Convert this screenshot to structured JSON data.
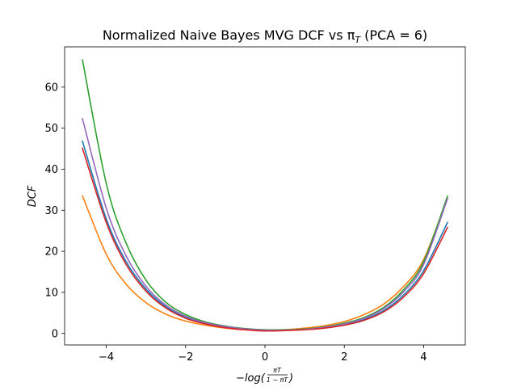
{
  "chart_data": {
    "type": "line",
    "title": "Normalized Naive Bayes MVG DCF vs π",
    "title_sub": "T",
    "title_tail": " (PCA = 6)",
    "xlabel_prefix": "−",
    "xlabel_main": "log(",
    "xlabel_frac_num": "πT",
    "xlabel_frac_den": "1 − πT",
    "xlabel_suffix": ")",
    "ylabel": "DCF",
    "xlim": [
      -5.05,
      5.05
    ],
    "ylim": [
      -2.8,
      69.8
    ],
    "xticks": [
      -4,
      -2,
      0,
      2,
      4
    ],
    "xtick_labels": [
      "−4",
      "−2",
      "0",
      "2",
      "4"
    ],
    "yticks": [
      0,
      10,
      20,
      30,
      40,
      50,
      60
    ],
    "ytick_labels": [
      "0",
      "10",
      "20",
      "30",
      "40",
      "50",
      "60"
    ],
    "grid": false,
    "series": [
      {
        "color": "#1f77b4",
        "x": [
          -4.6,
          -4.0,
          -3.5,
          -3.0,
          -2.5,
          -2.0,
          -1.5,
          -1.0,
          -0.5,
          0.0,
          0.5,
          1.0,
          1.5,
          2.0,
          2.5,
          3.0,
          3.5,
          4.0,
          4.6
        ],
        "values": [
          46.8,
          27.9,
          17.5,
          10.8,
          6.5,
          3.9,
          2.4,
          1.5,
          1.0,
          0.7,
          0.8,
          1.0,
          1.4,
          2.1,
          3.4,
          5.6,
          9.4,
          15.3,
          27.0
        ]
      },
      {
        "color": "#ff7f0e",
        "x": [
          -4.6,
          -4.0,
          -3.5,
          -3.0,
          -2.5,
          -2.0,
          -1.5,
          -1.0,
          -0.5,
          0.0,
          0.5,
          1.0,
          1.5,
          2.0,
          2.5,
          3.0,
          3.5,
          4.0,
          4.6
        ],
        "values": [
          33.5,
          19.3,
          12.0,
          7.5,
          4.7,
          3.0,
          2.0,
          1.3,
          0.9,
          0.7,
          0.9,
          1.3,
          1.9,
          2.9,
          4.6,
          7.2,
          11.5,
          18.0,
          33.0
        ]
      },
      {
        "color": "#2ca02c",
        "x": [
          -4.6,
          -4.0,
          -3.5,
          -3.0,
          -2.5,
          -2.0,
          -1.5,
          -1.0,
          -0.5,
          0.0,
          0.5,
          1.0,
          1.5,
          2.0,
          2.5,
          3.0,
          3.5,
          4.0,
          4.6
        ],
        "values": [
          66.6,
          36.5,
          22.0,
          13.0,
          7.6,
          4.6,
          2.8,
          1.8,
          1.2,
          0.9,
          0.9,
          1.1,
          1.6,
          2.5,
          3.9,
          6.4,
          10.7,
          17.5,
          33.4
        ]
      },
      {
        "color": "#9467bd",
        "x": [
          -4.6,
          -4.0,
          -3.5,
          -3.0,
          -2.5,
          -2.0,
          -1.5,
          -1.0,
          -0.5,
          0.0,
          0.5,
          1.0,
          1.5,
          2.0,
          2.5,
          3.0,
          3.5,
          4.0,
          4.6
        ],
        "values": [
          52.3,
          30.5,
          18.9,
          11.5,
          6.9,
          4.2,
          2.6,
          1.7,
          1.1,
          0.8,
          0.8,
          1.0,
          1.5,
          2.3,
          3.7,
          6.1,
          10.2,
          16.8,
          32.8
        ]
      },
      {
        "color": "#d62728",
        "x": [
          -4.6,
          -4.0,
          -3.5,
          -3.0,
          -2.5,
          -2.0,
          -1.5,
          -1.0,
          -0.5,
          0.0,
          0.5,
          1.0,
          1.5,
          2.0,
          2.5,
          3.0,
          3.5,
          4.0,
          4.6
        ],
        "values": [
          45.1,
          27.0,
          16.8,
          10.3,
          6.2,
          3.7,
          2.3,
          1.4,
          0.9,
          0.6,
          0.7,
          0.9,
          1.3,
          2.0,
          3.2,
          5.3,
          8.9,
          14.6,
          25.8
        ]
      }
    ]
  }
}
